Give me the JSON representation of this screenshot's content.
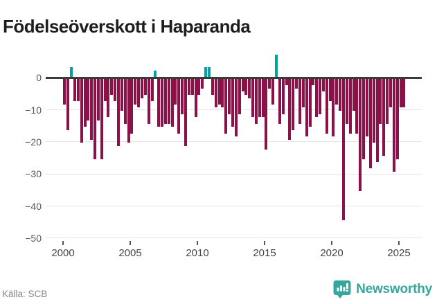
{
  "title": "Födelseöverskott i Haparanda",
  "footer": {
    "source": "Källa: SCB",
    "logo_text": "Newsworthy"
  },
  "colors": {
    "negative_bar": "#8E1048",
    "positive_bar": "#00A2A2",
    "axis": "#3A3A3A",
    "grid": "#E4E4E4",
    "brand_teal": "#35A79B"
  },
  "chart_data": {
    "type": "bar",
    "title": "Födelseöverskott i Haparanda",
    "frequency": "quarterly",
    "xlabel": "",
    "ylabel": "",
    "ylim": [
      -50,
      8
    ],
    "y_ticks": [
      "0",
      "−10",
      "−20",
      "−30",
      "−40",
      "−50"
    ],
    "y_tick_values": [
      0,
      -10,
      -20,
      -30,
      -40,
      -50
    ],
    "x_ticks": [
      "2000",
      "2005",
      "2010",
      "2015",
      "2020",
      "2025"
    ],
    "x_tick_years": [
      2000,
      2005,
      2010,
      2015,
      2020,
      2025
    ],
    "grid": true,
    "legend": "none",
    "years": [
      {
        "year": 2000,
        "quarters": [
          -8,
          -16,
          3,
          -7
        ]
      },
      {
        "year": 2001,
        "quarters": [
          -7,
          -20,
          -15,
          -13
        ]
      },
      {
        "year": 2002,
        "quarters": [
          -19,
          -25,
          -13,
          -25
        ]
      },
      {
        "year": 2003,
        "quarters": [
          -7,
          -12,
          -5,
          -7
        ]
      },
      {
        "year": 2004,
        "quarters": [
          -21,
          -10,
          -14,
          -20
        ]
      },
      {
        "year": 2005,
        "quarters": [
          -17,
          -8,
          -9,
          -6
        ]
      },
      {
        "year": 2006,
        "quarters": [
          -5,
          -14,
          -7,
          2
        ]
      },
      {
        "year": 2007,
        "quarters": [
          -15,
          -15,
          -14,
          -14
        ]
      },
      {
        "year": 2008,
        "quarters": [
          -15,
          -8,
          -17,
          -11
        ]
      },
      {
        "year": 2009,
        "quarters": [
          -21,
          -5,
          -5,
          -12
        ]
      },
      {
        "year": 2010,
        "quarters": [
          -5,
          -3,
          3,
          3
        ]
      },
      {
        "year": 2011,
        "quarters": [
          -5,
          -9,
          -8,
          -9
        ]
      },
      {
        "year": 2012,
        "quarters": [
          -17,
          -11,
          -15,
          -18
        ]
      },
      {
        "year": 2013,
        "quarters": [
          -11,
          -4,
          -5,
          -6
        ]
      },
      {
        "year": 2014,
        "quarters": [
          -12,
          -14,
          -12,
          -12
        ]
      },
      {
        "year": 2015,
        "quarters": [
          -22,
          -3,
          -8,
          7
        ]
      },
      {
        "year": 2016,
        "quarters": [
          -14,
          -11,
          -2,
          -19
        ]
      },
      {
        "year": 2017,
        "quarters": [
          -16,
          -3,
          -14,
          -9
        ]
      },
      {
        "year": 2018,
        "quarters": [
          -18,
          -15,
          -2,
          -12
        ]
      },
      {
        "year": 2019,
        "quarters": [
          -11,
          -4,
          -17,
          -7
        ]
      },
      {
        "year": 2020,
        "quarters": [
          -18,
          -8,
          -10,
          -44
        ]
      },
      {
        "year": 2021,
        "quarters": [
          -14,
          -17,
          -10,
          -17
        ]
      },
      {
        "year": 2022,
        "quarters": [
          -35,
          -25,
          -18,
          -28
        ]
      },
      {
        "year": 2023,
        "quarters": [
          -20,
          -26,
          -14,
          -24
        ]
      },
      {
        "year": 2024,
        "quarters": [
          -14,
          -9,
          -29,
          -25
        ]
      },
      {
        "year": 2025,
        "quarters": [
          -9,
          -9
        ]
      }
    ]
  }
}
